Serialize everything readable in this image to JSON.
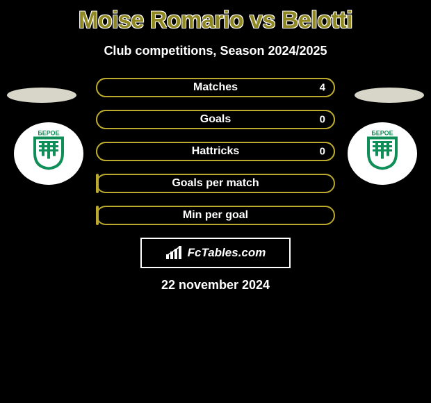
{
  "title": "Moise Romario vs Belotti",
  "subtitle": "Club competitions, Season 2024/2025",
  "date": "22 november 2024",
  "watermark": "FcTables.com",
  "colors": {
    "title": "#8f8722",
    "bar_border": "#bba92e",
    "bar_fill_bg": "#000000",
    "flag_left": "#d8d6c8",
    "flag_right": "#d8d6c8",
    "badge_green": "#0f8f57",
    "badge_bg": "#ffffff"
  },
  "badge_text": "БЕРОЕ",
  "stats": [
    {
      "label": "Matches",
      "value_right": "4",
      "full": true
    },
    {
      "label": "Goals",
      "value_right": "0",
      "full": true
    },
    {
      "label": "Hattricks",
      "value_right": "0",
      "full": true
    },
    {
      "label": "Goals per match",
      "value_right": "",
      "full": false
    },
    {
      "label": "Min per goal",
      "value_right": "",
      "full": false
    }
  ]
}
